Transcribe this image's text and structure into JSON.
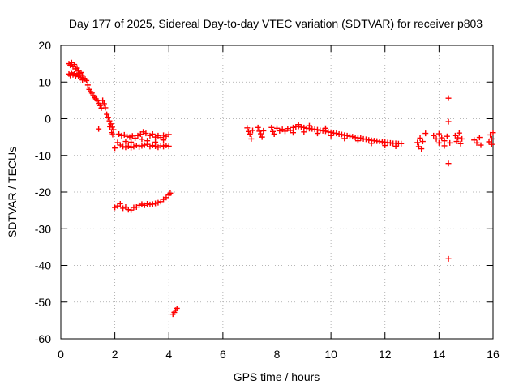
{
  "chart_data": {
    "type": "scatter",
    "title": "Day 177 of 2025, Sidereal Day-to-day VTEC variation (SDTVAR) for receiver p803",
    "xlabel": "GPS time / hours",
    "ylabel": "SDTVAR / TECUs",
    "xlim": [
      0,
      16
    ],
    "ylim": [
      -60,
      20
    ],
    "grid": true,
    "marker": "+",
    "x_ticks": [
      0,
      2,
      4,
      6,
      8,
      10,
      12,
      14,
      16
    ],
    "y_ticks": [
      -60,
      -50,
      -40,
      -30,
      -20,
      -10,
      0,
      10,
      20
    ],
    "series": [
      {
        "name": "SDTVAR",
        "color": "#ff0000",
        "points": [
          [
            0.3,
            15.0
          ],
          [
            0.35,
            14.6
          ],
          [
            0.4,
            15.3
          ],
          [
            0.45,
            14.2
          ],
          [
            0.5,
            14.8
          ],
          [
            0.55,
            13.6
          ],
          [
            0.6,
            13.8
          ],
          [
            0.65,
            13.2
          ],
          [
            0.7,
            12.4
          ],
          [
            0.75,
            12.6
          ],
          [
            0.8,
            11.9
          ],
          [
            0.85,
            11.0
          ],
          [
            0.9,
            10.8
          ],
          [
            0.95,
            10.4
          ],
          [
            1.0,
            9.2
          ],
          [
            0.3,
            12.2
          ],
          [
            0.35,
            11.8
          ],
          [
            0.4,
            12.5
          ],
          [
            0.45,
            12.0
          ],
          [
            0.5,
            12.3
          ],
          [
            0.55,
            11.7
          ],
          [
            0.6,
            12.1
          ],
          [
            0.65,
            11.5
          ],
          [
            0.7,
            11.9
          ],
          [
            0.75,
            11.2
          ],
          [
            0.8,
            10.6
          ],
          [
            1.05,
            8.0
          ],
          [
            1.1,
            7.4
          ],
          [
            1.15,
            7.0
          ],
          [
            1.2,
            6.3
          ],
          [
            1.25,
            5.8
          ],
          [
            1.3,
            5.4
          ],
          [
            1.35,
            4.9
          ],
          [
            1.4,
            4.2
          ],
          [
            1.45,
            3.6
          ],
          [
            1.5,
            2.9
          ],
          [
            1.55,
            5.0
          ],
          [
            1.6,
            4.1
          ],
          [
            1.65,
            3.0
          ],
          [
            1.7,
            1.2
          ],
          [
            1.75,
            0.4
          ],
          [
            1.8,
            -0.6
          ],
          [
            1.85,
            -1.4
          ],
          [
            1.9,
            -2.3
          ],
          [
            1.95,
            -3.0
          ],
          [
            1.82,
            -2.2
          ],
          [
            1.88,
            -3.8
          ],
          [
            1.92,
            -4.3
          ],
          [
            1.4,
            -2.8
          ],
          [
            2.15,
            -4.2
          ],
          [
            2.25,
            -4.6
          ],
          [
            2.35,
            -4.4
          ],
          [
            2.45,
            -4.8
          ],
          [
            2.55,
            -5.0
          ],
          [
            2.65,
            -4.7
          ],
          [
            2.75,
            -5.3
          ],
          [
            2.85,
            -4.6
          ],
          [
            2.95,
            -4.2
          ],
          [
            3.05,
            -3.6
          ],
          [
            3.15,
            -4.0
          ],
          [
            3.3,
            -4.6
          ],
          [
            3.4,
            -4.2
          ],
          [
            3.5,
            -5.0
          ],
          [
            3.6,
            -4.6
          ],
          [
            3.7,
            -5.1
          ],
          [
            3.8,
            -4.5
          ],
          [
            3.9,
            -4.8
          ],
          [
            4.0,
            -4.3
          ],
          [
            2.2,
            -7.2
          ],
          [
            2.3,
            -7.6
          ],
          [
            2.4,
            -7.8
          ],
          [
            2.5,
            -7.5
          ],
          [
            2.6,
            -7.9
          ],
          [
            2.7,
            -7.6
          ],
          [
            2.8,
            -7.3
          ],
          [
            2.9,
            -7.7
          ],
          [
            3.0,
            -7.4
          ],
          [
            3.1,
            -7.2
          ],
          [
            3.2,
            -7.0
          ],
          [
            3.3,
            -7.6
          ],
          [
            3.4,
            -7.3
          ],
          [
            3.5,
            -7.5
          ],
          [
            3.6,
            -7.8
          ],
          [
            3.7,
            -7.4
          ],
          [
            3.8,
            -7.6
          ],
          [
            3.9,
            -7.3
          ],
          [
            4.0,
            -7.5
          ],
          [
            2.4,
            -6.2
          ],
          [
            2.6,
            -6.4
          ],
          [
            3.0,
            -5.6
          ],
          [
            3.2,
            -6.0
          ],
          [
            3.5,
            -6.4
          ],
          [
            3.8,
            -5.8
          ],
          [
            2.0,
            -8.0
          ],
          [
            2.1,
            -6.5
          ],
          [
            2.0,
            -24.2
          ],
          [
            2.1,
            -23.8
          ],
          [
            2.2,
            -23.2
          ],
          [
            2.3,
            -24.4
          ],
          [
            2.4,
            -24.1
          ],
          [
            2.5,
            -24.8
          ],
          [
            2.6,
            -24.9
          ],
          [
            2.7,
            -24.2
          ],
          [
            2.8,
            -24.1
          ],
          [
            2.9,
            -23.6
          ],
          [
            3.0,
            -23.3
          ],
          [
            3.1,
            -23.6
          ],
          [
            3.2,
            -23.2
          ],
          [
            3.3,
            -23.4
          ],
          [
            3.4,
            -23.3
          ],
          [
            3.5,
            -23.1
          ],
          [
            3.6,
            -22.9
          ],
          [
            3.7,
            -22.6
          ],
          [
            3.8,
            -22.0
          ],
          [
            3.9,
            -21.5
          ],
          [
            4.0,
            -20.8
          ],
          [
            4.05,
            -20.3
          ],
          [
            4.15,
            -53.3
          ],
          [
            4.2,
            -52.8
          ],
          [
            4.25,
            -52.2
          ],
          [
            4.3,
            -51.7
          ],
          [
            6.9,
            -2.5
          ],
          [
            6.95,
            -3.5
          ],
          [
            7.0,
            -4.2
          ],
          [
            7.05,
            -5.5
          ],
          [
            7.1,
            -3.2
          ],
          [
            7.3,
            -2.4
          ],
          [
            7.35,
            -3.4
          ],
          [
            7.4,
            -4.1
          ],
          [
            7.45,
            -5.0
          ],
          [
            7.5,
            -3.3
          ],
          [
            7.8,
            -2.4
          ],
          [
            7.85,
            -3.5
          ],
          [
            7.9,
            -4.2
          ],
          [
            8.0,
            -2.6
          ],
          [
            8.1,
            -3.3
          ],
          [
            8.2,
            -2.9
          ],
          [
            8.3,
            -3.4
          ],
          [
            8.4,
            -2.7
          ],
          [
            8.5,
            -3.2
          ],
          [
            8.6,
            -2.4
          ],
          [
            8.7,
            -2.2
          ],
          [
            8.8,
            -2.1
          ],
          [
            8.9,
            -2.3
          ],
          [
            9.0,
            -2.4
          ],
          [
            9.1,
            -2.6
          ],
          [
            9.2,
            -2.7
          ],
          [
            9.3,
            -2.8
          ],
          [
            9.4,
            -2.9
          ],
          [
            9.5,
            -3.0
          ],
          [
            9.6,
            -3.2
          ],
          [
            9.7,
            -3.3
          ],
          [
            9.8,
            -3.4
          ],
          [
            9.9,
            -3.6
          ],
          [
            10.0,
            -3.7
          ],
          [
            10.1,
            -3.9
          ],
          [
            10.2,
            -4.0
          ],
          [
            10.3,
            -4.2
          ],
          [
            10.4,
            -4.3
          ],
          [
            10.5,
            -4.5
          ],
          [
            10.6,
            -4.6
          ],
          [
            10.7,
            -4.8
          ],
          [
            10.8,
            -4.9
          ],
          [
            10.9,
            -5.1
          ],
          [
            11.0,
            -5.2
          ],
          [
            11.1,
            -5.3
          ],
          [
            11.2,
            -5.5
          ],
          [
            11.3,
            -5.6
          ],
          [
            11.4,
            -5.8
          ],
          [
            11.5,
            -5.9
          ],
          [
            11.6,
            -6.0
          ],
          [
            11.7,
            -6.1
          ],
          [
            11.8,
            -6.2
          ],
          [
            11.9,
            -6.3
          ],
          [
            12.0,
            -6.4
          ],
          [
            12.1,
            -6.5
          ],
          [
            12.2,
            -6.6
          ],
          [
            12.3,
            -6.7
          ],
          [
            12.4,
            -6.7
          ],
          [
            12.5,
            -6.8
          ],
          [
            12.6,
            -6.8
          ],
          [
            8.6,
            -3.8
          ],
          [
            9.0,
            -3.6
          ],
          [
            9.5,
            -4.0
          ],
          [
            10.0,
            -4.6
          ],
          [
            10.5,
            -5.4
          ],
          [
            11.0,
            -6.0
          ],
          [
            11.5,
            -6.7
          ],
          [
            12.0,
            -7.3
          ],
          [
            12.4,
            -7.5
          ],
          [
            8.8,
            -1.6
          ],
          [
            9.2,
            -1.9
          ],
          [
            9.8,
            -2.6
          ],
          [
            13.2,
            -6.5
          ],
          [
            13.25,
            -7.6
          ],
          [
            13.3,
            -5.3
          ],
          [
            13.35,
            -8.2
          ],
          [
            13.4,
            -6.2
          ],
          [
            13.5,
            -4.0
          ],
          [
            13.8,
            -4.6
          ],
          [
            13.9,
            -5.5
          ],
          [
            14.0,
            -6.6
          ],
          [
            14.1,
            -5.2
          ],
          [
            14.2,
            -6.0
          ],
          [
            14.3,
            -4.8
          ],
          [
            14.4,
            -6.6
          ],
          [
            14.0,
            -4.1
          ],
          [
            14.2,
            -7.4
          ],
          [
            14.35,
            5.6
          ],
          [
            14.35,
            -0.8
          ],
          [
            14.35,
            -12.2
          ],
          [
            14.35,
            -38.2
          ],
          [
            14.6,
            -4.6
          ],
          [
            14.65,
            -6.2
          ],
          [
            14.7,
            -5.2
          ],
          [
            14.75,
            -3.9
          ],
          [
            14.8,
            -6.8
          ],
          [
            14.85,
            -5.5
          ],
          [
            15.3,
            -5.8
          ],
          [
            15.4,
            -6.6
          ],
          [
            15.5,
            -5.1
          ],
          [
            15.55,
            -7.2
          ],
          [
            15.85,
            -6.3
          ],
          [
            15.9,
            -4.4
          ],
          [
            15.95,
            -7.0
          ],
          [
            16.0,
            -3.8
          ],
          [
            15.95,
            -5.5
          ]
        ]
      }
    ]
  }
}
